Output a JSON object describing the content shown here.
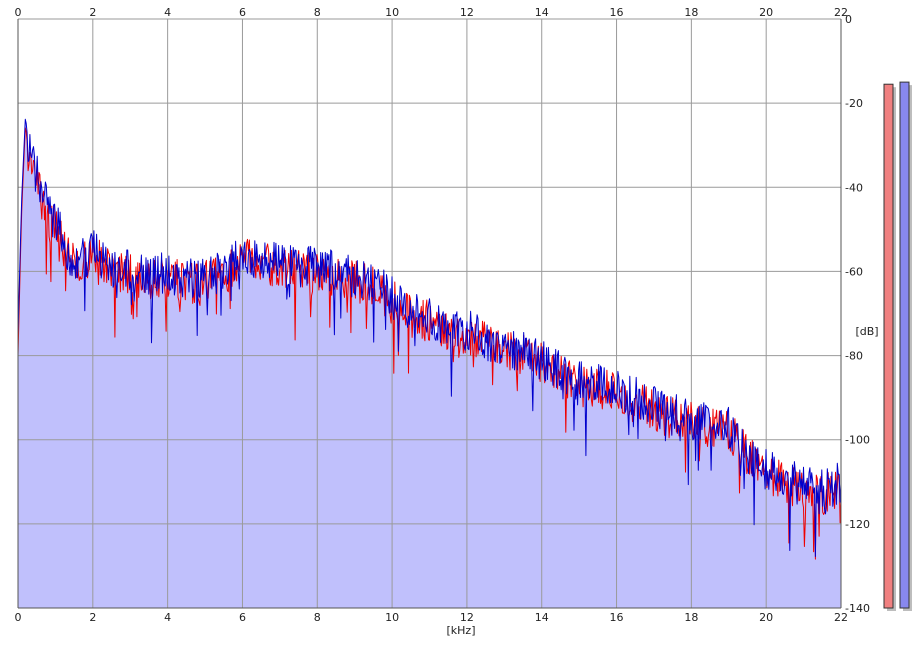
{
  "chart_data": {
    "type": "area",
    "title": "",
    "xlabel": "[kHz]",
    "ylabel": "[dB]",
    "xlim": [
      0,
      22
    ],
    "ylim": [
      -140,
      0
    ],
    "x_ticks": [
      "0",
      "2",
      "4",
      "6",
      "8",
      "10",
      "12",
      "14",
      "16",
      "18",
      "20",
      "22"
    ],
    "y_ticks": [
      "0",
      "-20",
      "-40",
      "-60",
      "-80",
      "-100",
      "-120",
      "-140"
    ],
    "grid": true,
    "colors": {
      "background": "#ffffff",
      "fill": "#c0c0fc",
      "grid": "#9a9a9a",
      "series_red": "#ee0000",
      "series_blue": "#0000cc",
      "meter_red": "#f08080",
      "meter_blue": "#8888ee"
    },
    "series": [
      {
        "color": "#ee0000",
        "x": [
          0,
          0.1,
          0.2,
          0.3,
          0.5,
          0.7,
          1,
          1.3,
          1.6,
          2,
          2.5,
          3,
          3.5,
          4,
          4.5,
          5,
          5.5,
          6,
          6.5,
          7,
          7.5,
          8,
          8.5,
          9,
          9.5,
          10,
          10.5,
          11,
          11.5,
          12,
          12.5,
          13,
          13.5,
          14,
          14.5,
          15,
          15.5,
          16,
          16.5,
          17,
          17.5,
          18,
          18.5,
          19,
          19.5,
          20,
          20.5,
          21,
          21.5,
          22
        ],
        "y": [
          -80,
          -45,
          -25,
          -34,
          -38,
          -45,
          -50,
          -56,
          -59,
          -56,
          -60,
          -61,
          -62,
          -61,
          -63,
          -62,
          -61,
          -57,
          -58,
          -59,
          -60,
          -60,
          -61,
          -62,
          -64,
          -67,
          -70,
          -72,
          -74,
          -75,
          -77,
          -79,
          -80,
          -82,
          -85,
          -87,
          -88,
          -89,
          -91,
          -93,
          -95,
          -96,
          -97,
          -98,
          -104,
          -108,
          -110,
          -112,
          -113,
          -112
        ]
      },
      {
        "color": "#0000cc",
        "x": [
          0,
          0.1,
          0.2,
          0.3,
          0.5,
          0.7,
          1,
          1.3,
          1.6,
          2,
          2.5,
          3,
          3.5,
          4,
          4.5,
          5,
          5.5,
          6,
          6.5,
          7,
          7.5,
          8,
          8.5,
          9,
          9.5,
          10,
          10.5,
          11,
          11.5,
          12,
          12.5,
          13,
          13.5,
          14,
          14.5,
          15,
          15.5,
          16,
          16.5,
          17,
          17.5,
          18,
          18.5,
          19,
          19.5,
          20,
          20.5,
          21,
          21.5,
          22
        ],
        "y": [
          -75,
          -42,
          -23,
          -32,
          -37,
          -43,
          -48,
          -55,
          -58,
          -55,
          -59,
          -60,
          -61,
          -60,
          -62,
          -61,
          -60,
          -56,
          -57,
          -58,
          -59,
          -59,
          -60,
          -61,
          -63,
          -66,
          -69,
          -71,
          -73,
          -74,
          -76,
          -78,
          -79,
          -81,
          -84,
          -86,
          -87,
          -88,
          -90,
          -92,
          -94,
          -95,
          -96,
          -97,
          -103,
          -107,
          -109,
          -111,
          -112,
          -110
        ]
      }
    ],
    "meters": [
      {
        "color": "#f08080",
        "value_db": -15.5
      },
      {
        "color": "#8888ee",
        "value_db": -15
      }
    ]
  }
}
